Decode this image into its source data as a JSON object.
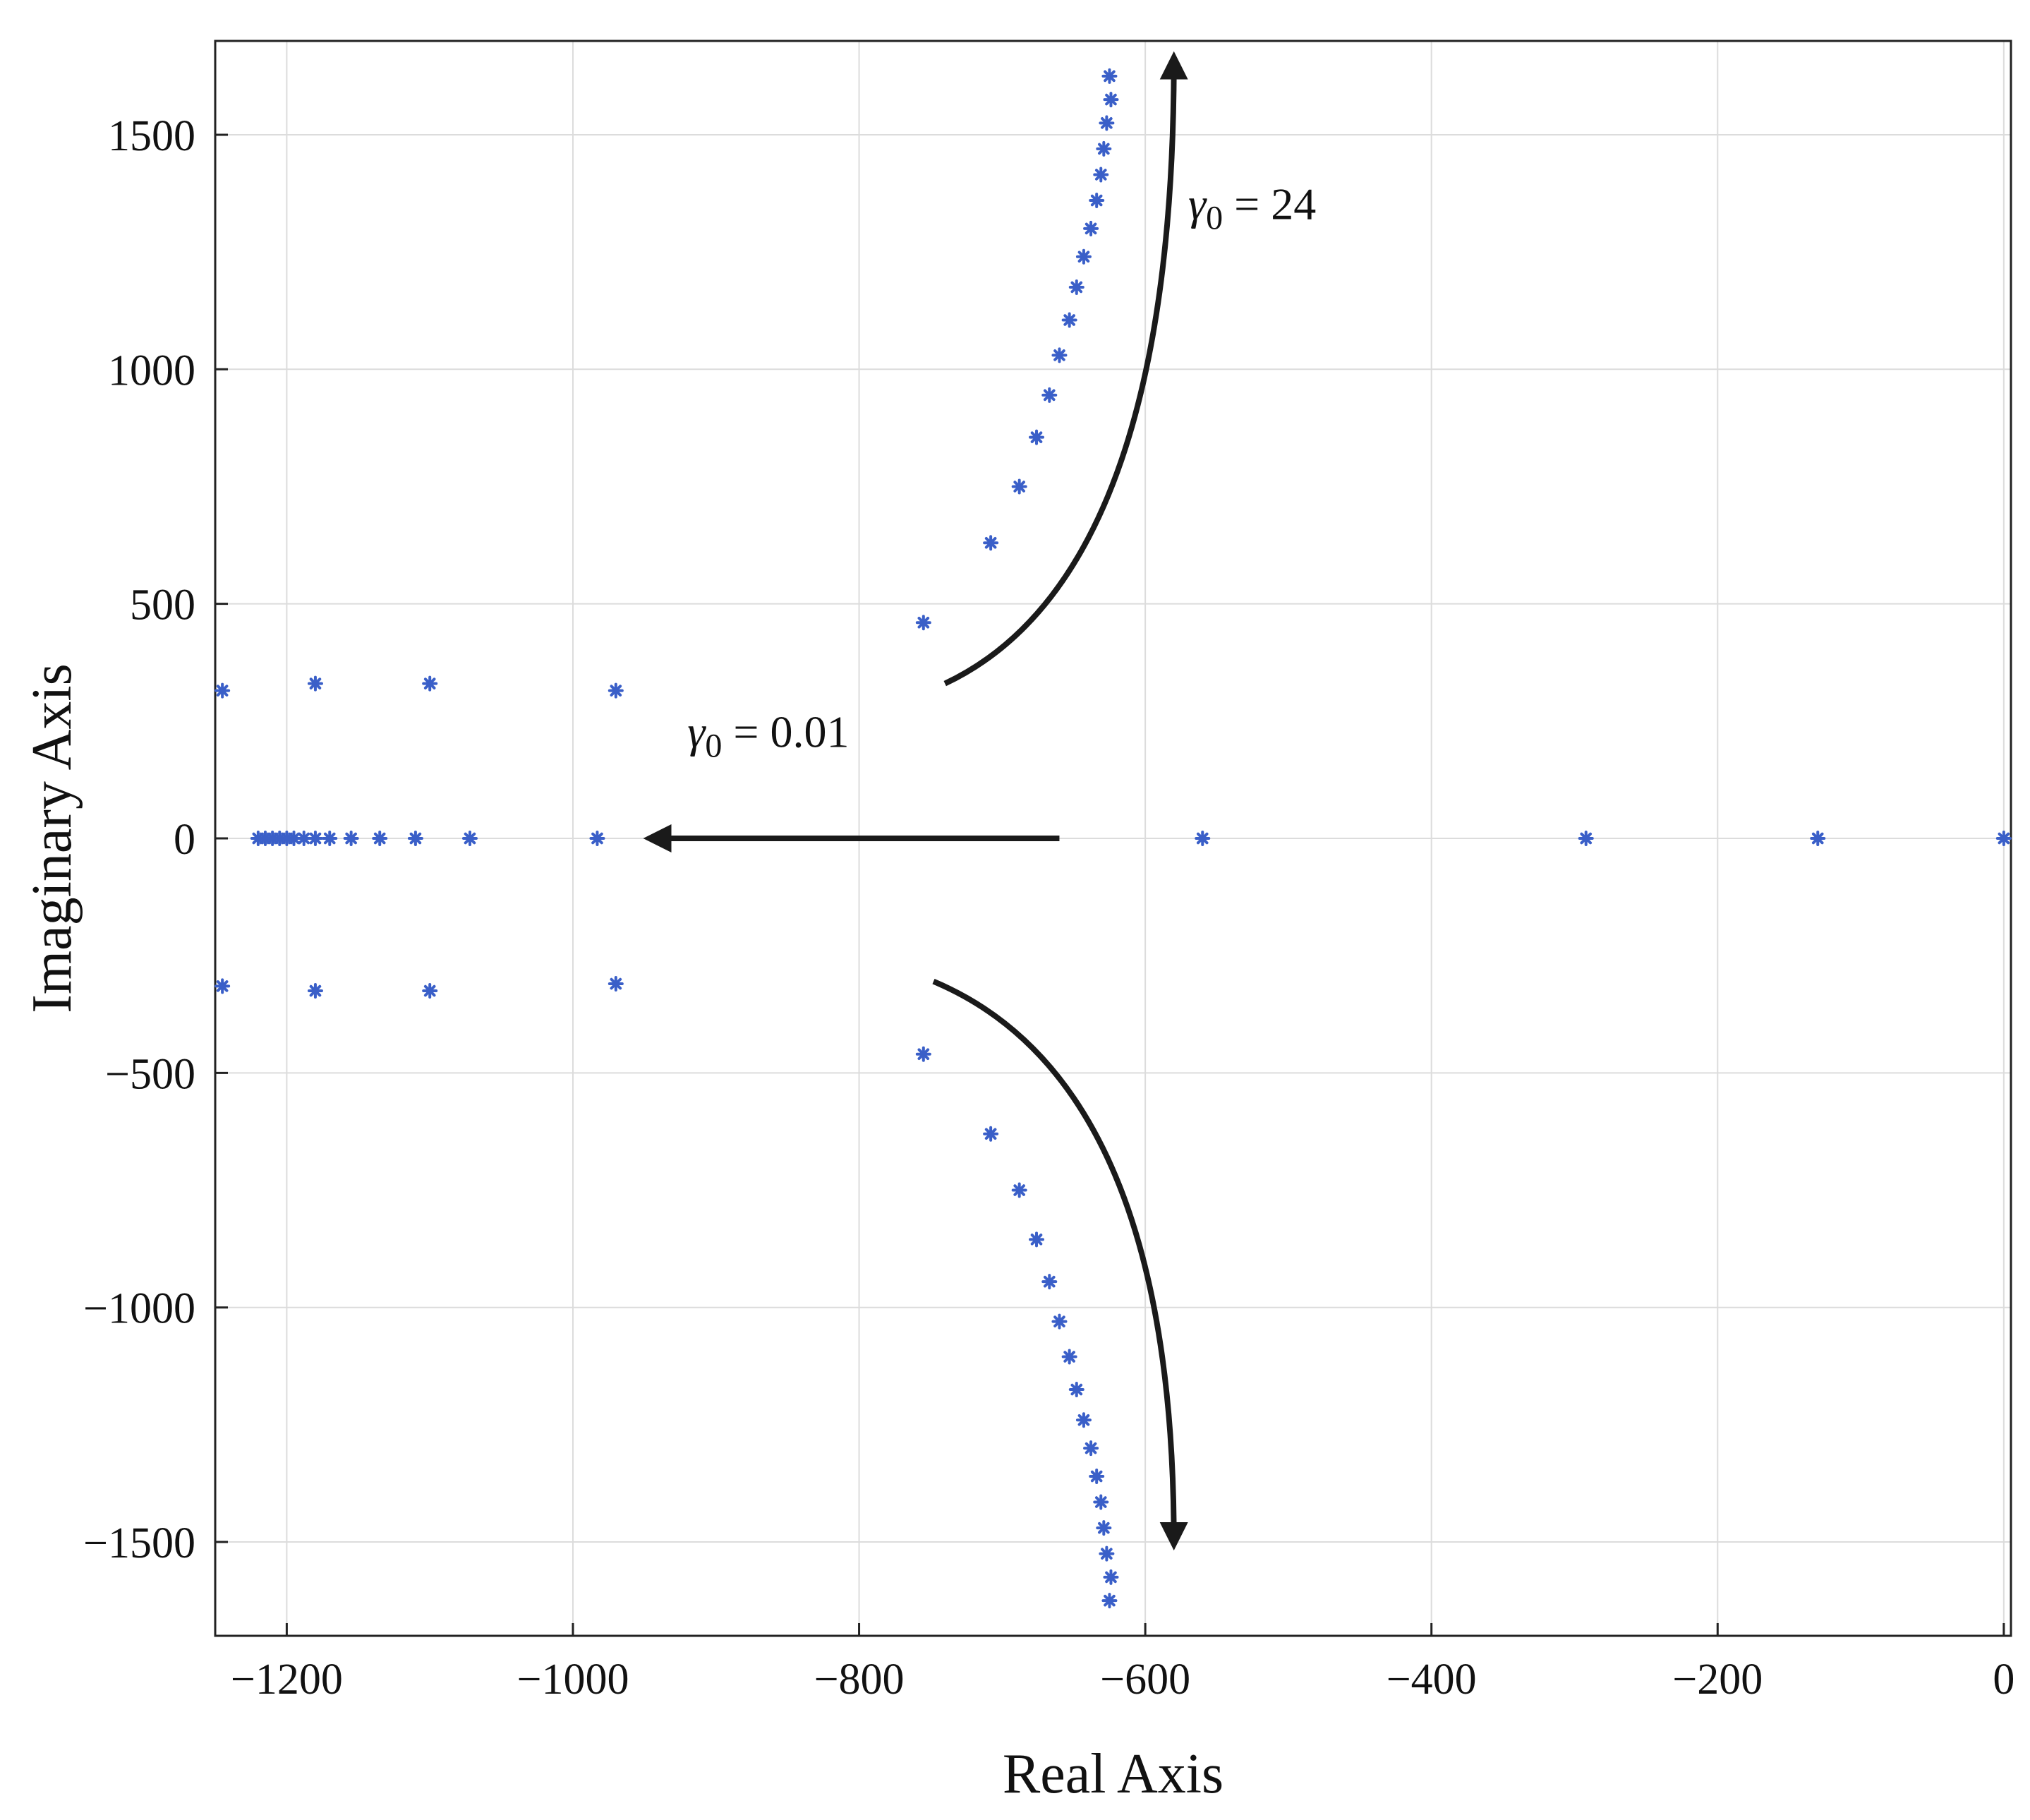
{
  "chart_data": {
    "type": "scatter",
    "title": "",
    "xlabel": "Real Axis",
    "ylabel": "Imaginary Axis",
    "xlim": [
      -1250,
      5
    ],
    "ylim": [
      -1700,
      1700
    ],
    "xticks": [
      -1200,
      -1000,
      -800,
      -600,
      -400,
      -200,
      0
    ],
    "yticks": [
      1500,
      1000,
      500,
      0,
      -500,
      -1000,
      -1500
    ],
    "xtick_labels": [
      "−1200",
      "−1000",
      "−800",
      "−600",
      "−400",
      "−200",
      "0"
    ],
    "ytick_labels": [
      "1500",
      "1000",
      "500",
      "0",
      "−500",
      "−1000",
      "−1500"
    ],
    "grid": true,
    "marker": "asterisk",
    "marker_color": "#3a5fc8",
    "series": [
      {
        "points": [
          [
            -625,
            1625
          ],
          [
            -624,
            1575
          ],
          [
            -627,
            1525
          ],
          [
            -629,
            1470
          ],
          [
            -631,
            1415
          ],
          [
            -634,
            1360
          ],
          [
            -638,
            1300
          ],
          [
            -643,
            1240
          ],
          [
            -648,
            1175
          ],
          [
            -653,
            1105
          ],
          [
            -660,
            1030
          ],
          [
            -667,
            945
          ],
          [
            -676,
            855
          ],
          [
            -688,
            750
          ],
          [
            -708,
            630
          ],
          [
            -755,
            460
          ],
          [
            -625,
            -1625
          ],
          [
            -624,
            -1575
          ],
          [
            -627,
            -1525
          ],
          [
            -629,
            -1470
          ],
          [
            -631,
            -1415
          ],
          [
            -634,
            -1360
          ],
          [
            -638,
            -1300
          ],
          [
            -643,
            -1240
          ],
          [
            -648,
            -1175
          ],
          [
            -653,
            -1105
          ],
          [
            -660,
            -1030
          ],
          [
            -667,
            -945
          ],
          [
            -676,
            -855
          ],
          [
            -688,
            -750
          ],
          [
            -708,
            -630
          ],
          [
            -755,
            -460
          ],
          [
            -1245,
            315
          ],
          [
            -1180,
            330
          ],
          [
            -1100,
            330
          ],
          [
            -970,
            315
          ],
          [
            -1245,
            -315
          ],
          [
            -1180,
            -325
          ],
          [
            -1100,
            -325
          ],
          [
            -970,
            -310
          ],
          [
            -1220,
            0
          ],
          [
            -1215,
            0
          ],
          [
            -1210,
            0
          ],
          [
            -1205,
            0
          ],
          [
            -1200,
            0
          ],
          [
            -1195,
            0
          ],
          [
            -1188,
            0
          ],
          [
            -1180,
            0
          ],
          [
            -1170,
            0
          ],
          [
            -1155,
            0
          ],
          [
            -1135,
            0
          ],
          [
            -1110,
            0
          ],
          [
            -1072,
            0
          ],
          [
            -983,
            0
          ],
          [
            -560,
            0
          ],
          [
            -292,
            0
          ],
          [
            -130,
            0
          ],
          [
            0,
            0
          ]
        ]
      }
    ],
    "annotations": [
      {
        "symbol": "γ",
        "subscript": "0",
        "text": " = 24",
        "arrow": "curved, upward",
        "x": -570,
        "y": 1320
      },
      {
        "symbol": "γ",
        "subscript": "0",
        "text": " = 0.01",
        "arrow": "straight, leftward",
        "x": -920,
        "y": 195
      },
      {
        "arrow": "curved, downward"
      }
    ]
  }
}
